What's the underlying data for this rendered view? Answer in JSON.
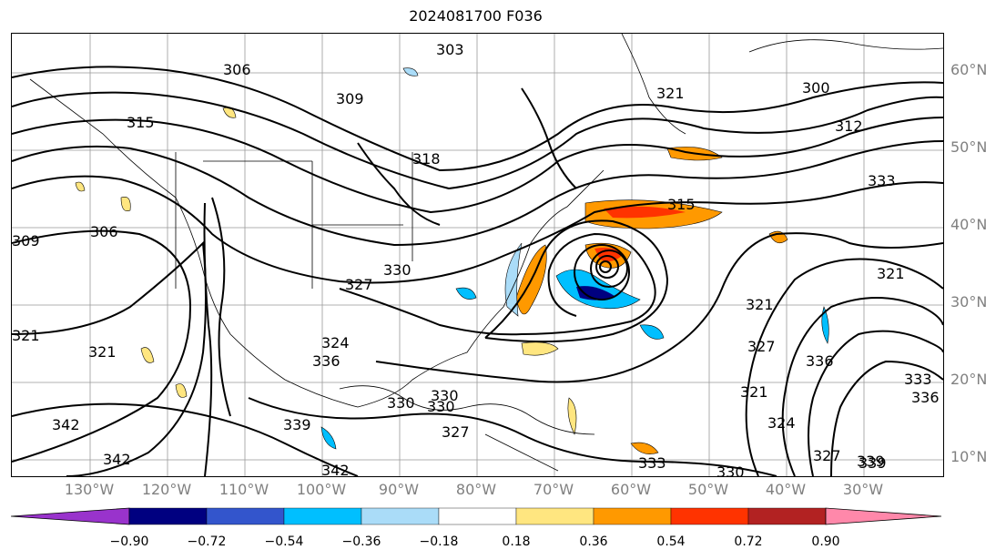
{
  "title": "2024081700 F036",
  "lat_labels": [
    "60°N",
    "50°N",
    "40°N",
    "30°N",
    "20°N",
    "10°N"
  ],
  "lon_labels": [
    "130°W",
    "120°W",
    "110°W",
    "100°W",
    "90°W",
    "80°W",
    "70°W",
    "60°W",
    "50°W",
    "40°W",
    "30°W"
  ],
  "contour_labels": [
    "306",
    "303",
    "300",
    "309",
    "312",
    "315",
    "315",
    "318",
    "306",
    "309",
    "321",
    "330",
    "327",
    "330",
    "342",
    "321",
    "324",
    "339",
    "342",
    "336",
    "330",
    "330",
    "327",
    "333",
    "330",
    "321",
    "327",
    "321",
    "324",
    "336",
    "333",
    "336",
    "339",
    "327",
    "339",
    "342",
    "321",
    "333",
    "321"
  ],
  "colorbar": {
    "ticks": [
      "−0.90",
      "−0.72",
      "−0.54",
      "−0.36",
      "−0.18",
      "0.18",
      "0.36",
      "0.54",
      "0.72",
      "0.90"
    ],
    "colors": [
      "#9933cc",
      "#000080",
      "#3355cc",
      "#00bfff",
      "#aadcf8",
      "#ffffff",
      "#ffe680",
      "#ff9900",
      "#ff3300",
      "#b22222",
      "#ff88aa"
    ]
  }
}
